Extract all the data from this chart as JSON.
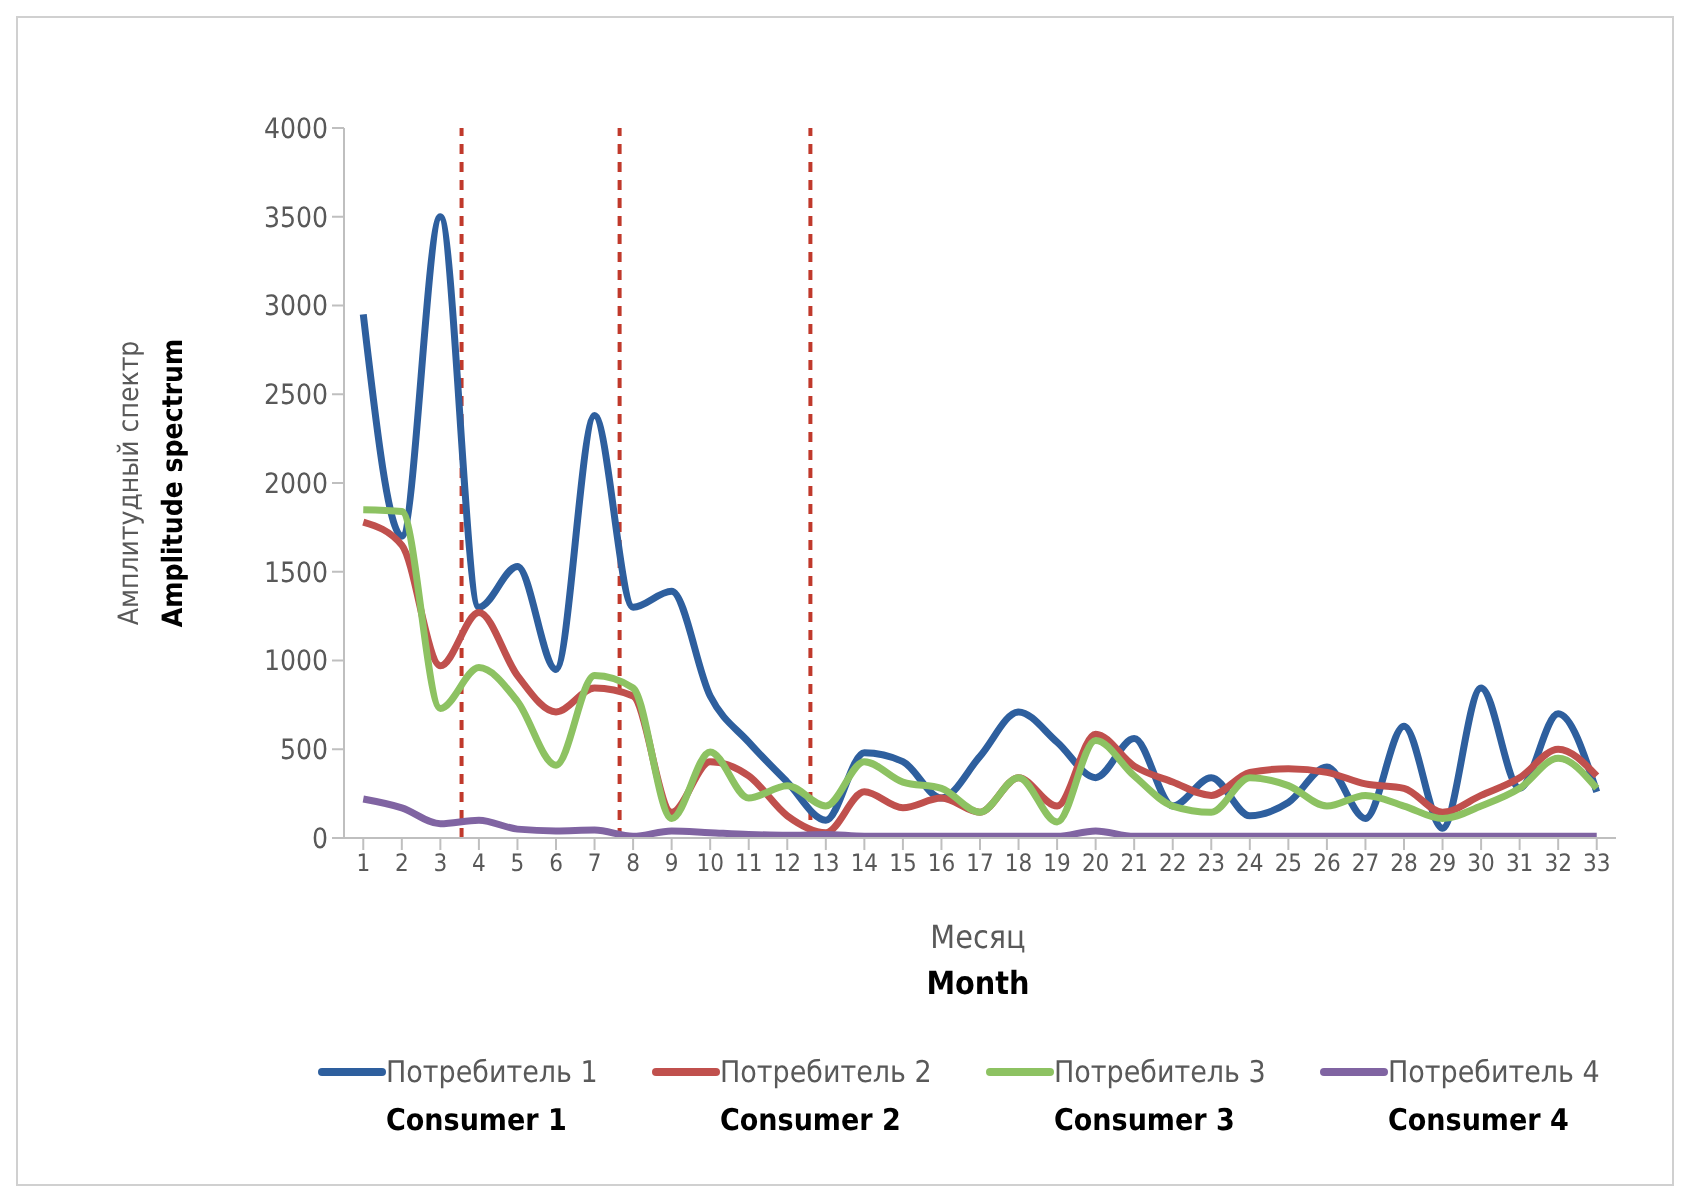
{
  "chart_data": {
    "type": "line",
    "xlabel": "Месяц\nMonth",
    "ylabel": "Амплитудный спектр\nAmplitude spectrum",
    "x": [
      1,
      2,
      3,
      4,
      5,
      6,
      7,
      8,
      9,
      10,
      11,
      12,
      13,
      14,
      15,
      16,
      17,
      18,
      19,
      20,
      21,
      22,
      23,
      24,
      25,
      26,
      27,
      28,
      29,
      30,
      31,
      32,
      33
    ],
    "xlim": [
      0.5,
      33.5
    ],
    "xticks": [
      1,
      2,
      3,
      4,
      5,
      6,
      7,
      8,
      9,
      10,
      11,
      12,
      13,
      14,
      15,
      16,
      17,
      18,
      19,
      20,
      21,
      22,
      23,
      24,
      25,
      26,
      27,
      28,
      29,
      30,
      31,
      32,
      33
    ],
    "ylim": [
      0,
      4000
    ],
    "yticks": [
      0,
      500,
      1000,
      1500,
      2000,
      2500,
      3000,
      3500,
      4000
    ],
    "series": [
      {
        "name": "Потребитель 1\nConsumer 1",
        "color": "#2e5f9e",
        "values": [
          2950,
          1700,
          3500,
          1300,
          1530,
          950,
          2380,
          1300,
          1390,
          800,
          540,
          315,
          100,
          480,
          430,
          225,
          460,
          710,
          540,
          340,
          560,
          180,
          340,
          125,
          200,
          400,
          110,
          630,
          55,
          845,
          280,
          700,
          260
        ]
      },
      {
        "name": "Потребитель 2\nConsumer 2",
        "color": "#c0504d",
        "values": [
          1780,
          1650,
          970,
          1270,
          915,
          710,
          845,
          800,
          145,
          430,
          350,
          125,
          30,
          260,
          170,
          225,
          145,
          340,
          180,
          585,
          405,
          315,
          240,
          370,
          390,
          370,
          305,
          280,
          145,
          240,
          340,
          500,
          350
        ]
      },
      {
        "name": "Потребитель 3\nConsumer 3",
        "color": "#8dc262",
        "values": [
          1850,
          1840,
          730,
          960,
          770,
          410,
          915,
          845,
          110,
          485,
          225,
          295,
          180,
          430,
          315,
          280,
          145,
          340,
          90,
          550,
          350,
          180,
          145,
          340,
          295,
          180,
          240,
          180,
          110,
          180,
          280,
          450,
          280
        ]
      },
      {
        "name": "Потребитель 4\nConsumer 4",
        "color": "#8064a2",
        "values": [
          220,
          170,
          80,
          100,
          50,
          40,
          45,
          10,
          40,
          30,
          20,
          15,
          20,
          10,
          10,
          10,
          10,
          10,
          10,
          40,
          10,
          10,
          10,
          10,
          10,
          10,
          10,
          10,
          10,
          10,
          10,
          10,
          10
        ]
      }
    ],
    "ref_lines": [
      {
        "axis": "x",
        "value": 3.55,
        "color": "#c0392b",
        "line_style": "dashed"
      },
      {
        "axis": "x",
        "value": 7.65,
        "color": "#c0392b",
        "line_style": "dashed"
      },
      {
        "axis": "x",
        "value": 12.6,
        "color": "#c0392b",
        "line_style": "dashed"
      }
    ],
    "grid": false,
    "legend": "bottom"
  }
}
